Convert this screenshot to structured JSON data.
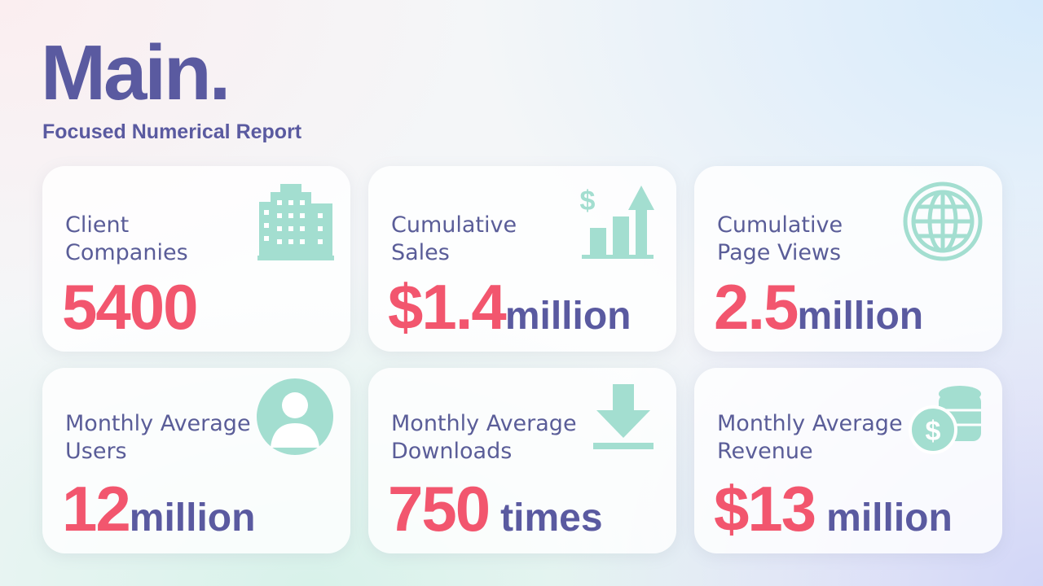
{
  "header": {
    "title": "Main.",
    "subtitle": "Focused Numerical Report"
  },
  "cards": [
    {
      "label": [
        "Client",
        "Companies"
      ],
      "value": "5400",
      "unit": null
    },
    {
      "label": [
        "Cumulative",
        "Sales"
      ],
      "value": "$1.4",
      "unit": "million"
    },
    {
      "label": [
        "Cumulative",
        "Page Views"
      ],
      "value": "2.5",
      "unit": "million"
    },
    {
      "label": [
        "Monthly Average",
        "Users"
      ],
      "value": "12",
      "unit": "million"
    },
    {
      "label": [
        "Monthly Average",
        "Downloads"
      ],
      "value": "750",
      "unit": "times"
    },
    {
      "label": [
        "Monthly Average",
        "Revenue"
      ],
      "value": "$13",
      "unit": "million"
    }
  ]
}
